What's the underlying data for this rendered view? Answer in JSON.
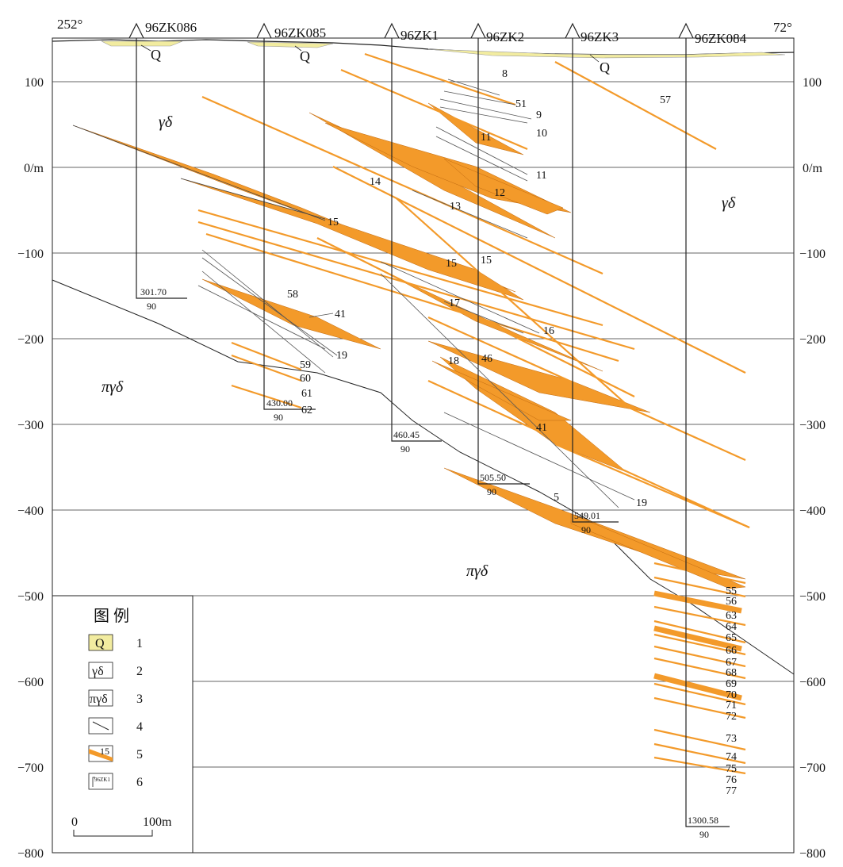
{
  "azimuth": {
    "left": "252°",
    "right": "72°"
  },
  "y_axis": {
    "left_ticks": [
      "100",
      "0/m",
      "−100",
      "−200",
      "−300",
      "−400",
      "−500",
      "−600",
      "−700",
      "−800"
    ],
    "right_ticks": [
      "100",
      "0/m",
      "−100",
      "−200",
      "−300",
      "−400",
      "−500",
      "−600",
      "−700",
      "−800"
    ]
  },
  "holes": [
    {
      "name": "96ZK086",
      "depth": "301.70",
      "angle": "90"
    },
    {
      "name": "96ZK085",
      "depth": "430.00",
      "angle": "90"
    },
    {
      "name": "96ZK1",
      "depth": "460.45",
      "angle": "90"
    },
    {
      "name": "96ZK2",
      "depth": "505.50",
      "angle": "90"
    },
    {
      "name": "96ZK3",
      "depth": "549.01",
      "angle": "90"
    },
    {
      "name": "96ZK084",
      "depth": "1300.58",
      "angle": "90"
    }
  ],
  "q_labels": [
    "Q",
    "Q",
    "Q"
  ],
  "rock_labels": {
    "gd_left": "γδ",
    "gd_right": "γδ",
    "pgd_left": "πγδ",
    "pgd_center": "πγδ"
  },
  "dike_labels": [
    "8",
    "51",
    "9",
    "10",
    "11",
    "11",
    "12",
    "13",
    "14",
    "15",
    "15",
    "15",
    "17",
    "16",
    "46",
    "18",
    "41",
    "5",
    "19",
    "57",
    "58",
    "41",
    "19",
    "59",
    "60",
    "61",
    "62",
    "55",
    "56",
    "63",
    "64",
    "65",
    "66",
    "67",
    "68",
    "69",
    "70",
    "71",
    "72",
    "73",
    "74",
    "75",
    "76",
    "77"
  ],
  "legend": {
    "title": "图  例",
    "items": [
      {
        "symbol": "Q",
        "num": "1"
      },
      {
        "symbol": "γδ",
        "num": "2"
      },
      {
        "symbol": "πγδ",
        "num": "3"
      },
      {
        "symbol": "",
        "num": "4"
      },
      {
        "symbol": "15",
        "num": "5"
      },
      {
        "symbol": "96ZK1",
        "num": "6"
      }
    ]
  },
  "scale": {
    "zero": "0",
    "length": "100m"
  },
  "colors": {
    "dike": "#f39a2a",
    "quaternary": "#f2eca0",
    "line": "#222222"
  }
}
